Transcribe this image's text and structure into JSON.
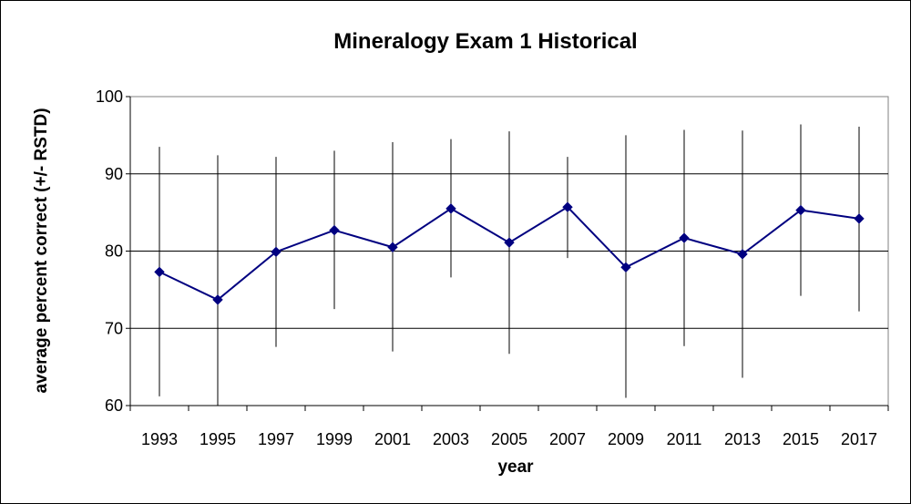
{
  "chart_data": {
    "type": "line",
    "title": "Mineralogy Exam 1 Historical",
    "xlabel": "year",
    "ylabel": "average percent correct (+/- RSTD)",
    "ylim": [
      60,
      100
    ],
    "yticks": [
      "60",
      "70",
      "80",
      "90",
      "100"
    ],
    "categories": [
      "1993",
      "1995",
      "1997",
      "1999",
      "2001",
      "2003",
      "2005",
      "2007",
      "2009",
      "2011",
      "2013",
      "2015",
      "2017"
    ],
    "series": [
      {
        "values": [
          77.3,
          73.7,
          79.9,
          82.7,
          80.5,
          85.5,
          81.1,
          85.7,
          77.9,
          81.7,
          79.6,
          85.3,
          84.2
        ],
        "error_low": [
          61.2,
          60.0,
          67.6,
          72.5,
          67.0,
          76.6,
          66.7,
          79.1,
          61.0,
          67.7,
          63.6,
          74.2,
          72.2
        ],
        "error_high": [
          93.5,
          92.4,
          92.2,
          93.0,
          94.1,
          94.5,
          95.5,
          92.2,
          95.0,
          95.7,
          95.6,
          96.4,
          96.1
        ],
        "color": "#000080",
        "marker": "diamond"
      }
    ],
    "grid": "horizontal major gridlines",
    "legend": "none"
  }
}
